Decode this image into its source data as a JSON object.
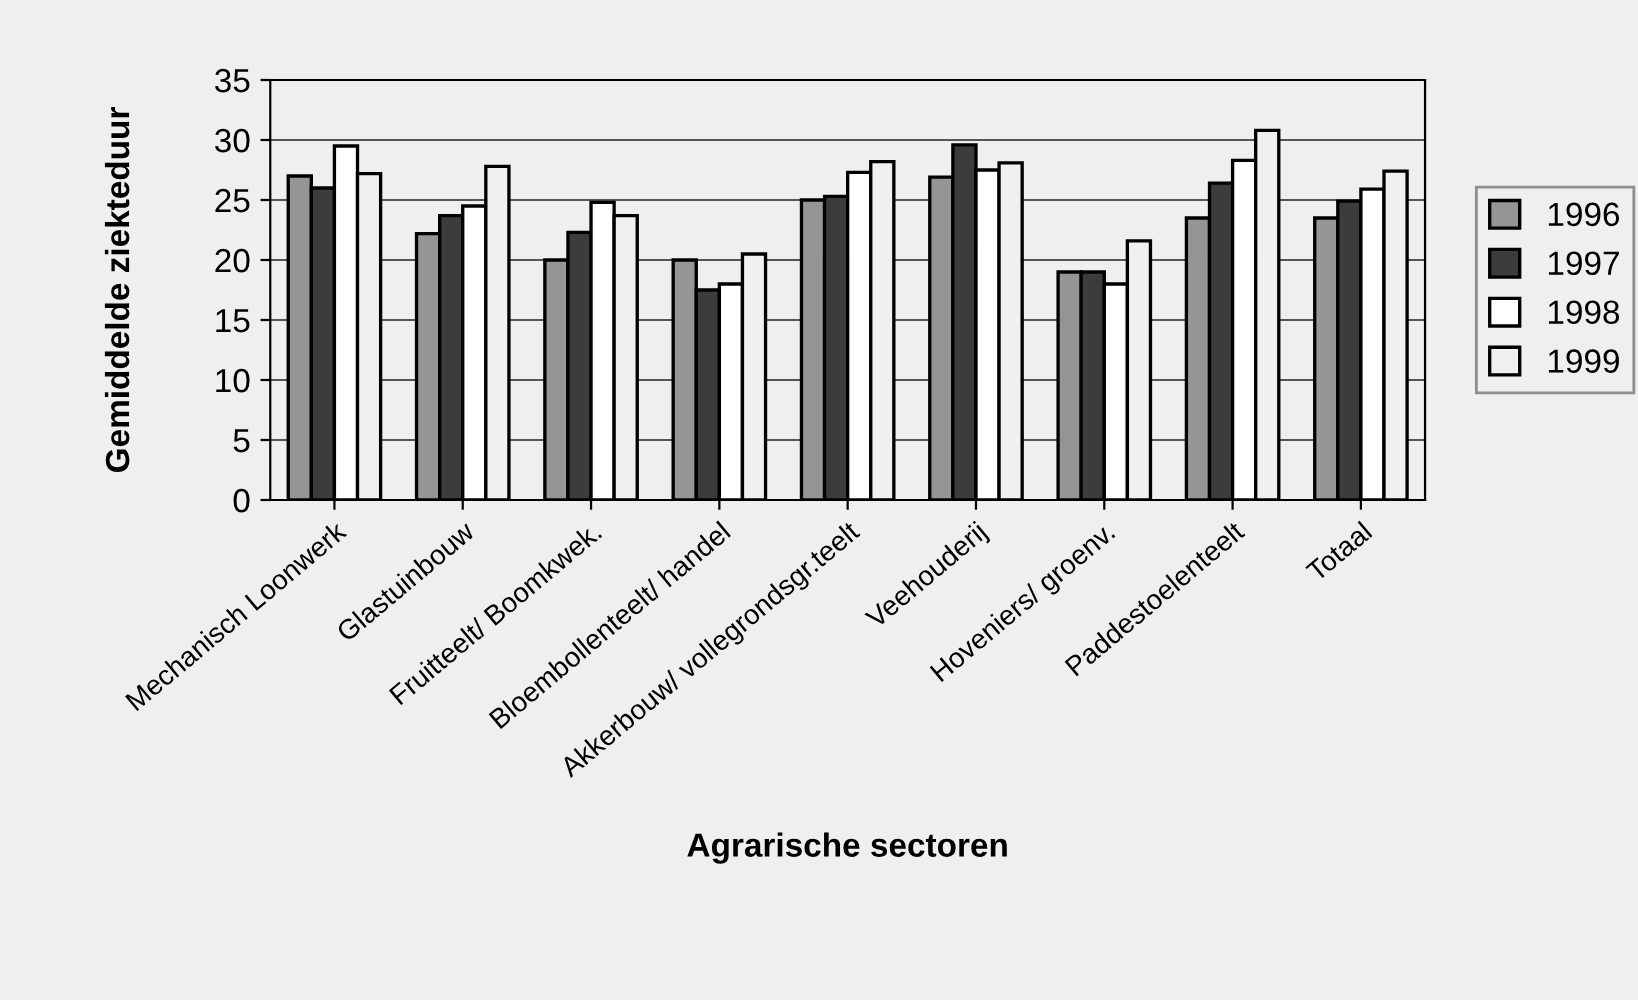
{
  "chart_data": {
    "type": "bar",
    "xlabel": "Agrarische sectoren",
    "ylabel": "Gemiddelde ziekteduur",
    "categories": [
      "Mechanisch Loonwerk",
      "Glastuinbouw",
      "Fruitteelt/ Boomkwek.",
      "Bloembollenteelt/ handel",
      "Akkerbouw/ vollegrondsgr.teelt",
      "Veehouderij",
      "Hoveniers/ groenv.",
      "Paddestoelenteelt",
      "Totaal"
    ],
    "series": [
      {
        "name": "1996",
        "color": "#959595",
        "values": [
          27,
          22.2,
          20,
          20,
          25,
          26.9,
          19,
          23.5,
          23.5
        ]
      },
      {
        "name": "1997",
        "color": "#3c3c3c",
        "values": [
          26,
          23.7,
          22.3,
          17.5,
          25.3,
          29.6,
          19,
          26.4,
          24.9
        ]
      },
      {
        "name": "1998",
        "color": "#ffffff",
        "values": [
          29.5,
          24.5,
          24.8,
          18,
          27.3,
          27.5,
          18,
          28.3,
          25.9
        ]
      },
      {
        "name": "1999",
        "color": "#f0f0f0",
        "values": [
          27.2,
          27.8,
          23.7,
          20.5,
          28.2,
          28.1,
          21.6,
          30.8,
          27.4
        ]
      }
    ],
    "ylim": [
      0,
      35
    ],
    "yticks": [
      0,
      5,
      10,
      15,
      20,
      25,
      30,
      35
    ],
    "grid": "y",
    "legend": "right"
  }
}
